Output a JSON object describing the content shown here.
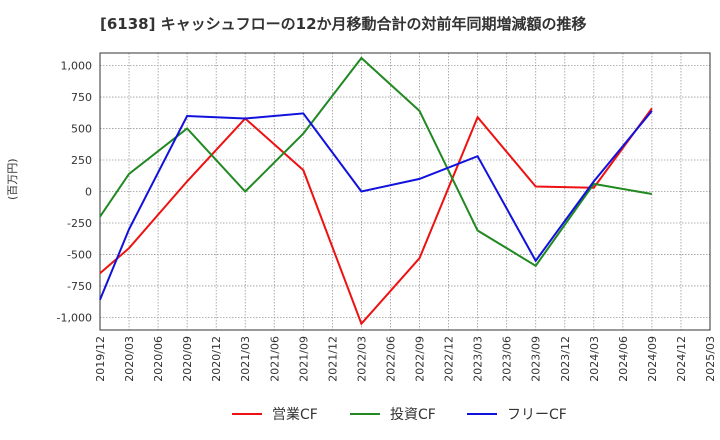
{
  "chart_data": {
    "type": "line",
    "title": "[6138]  キャッシュフローの12か月移動合計の対前年同期増減額の推移",
    "ylabel": "(百万円)",
    "xlabel": "",
    "ylim": [
      -1100,
      1100
    ],
    "yticks": [
      1000,
      750,
      500,
      250,
      0,
      -250,
      -500,
      -750,
      -1000
    ],
    "ytick_labels": [
      "1,000",
      "750",
      "500",
      "250",
      "0",
      "-250",
      "-500",
      "-750",
      "-1,000"
    ],
    "categories": [
      "2019/12",
      "2020/03",
      "2020/06",
      "2020/09",
      "2020/12",
      "2021/03",
      "2021/06",
      "2021/09",
      "2021/12",
      "2022/03",
      "2022/06",
      "2022/09",
      "2022/12",
      "2023/03",
      "2023/06",
      "2023/09",
      "2023/12",
      "2024/03",
      "2024/06",
      "2024/09",
      "2024/12",
      "2025/03"
    ],
    "grid": true,
    "legend_position": "bottom",
    "series": [
      {
        "name": "営業CF",
        "color": "#ee1111",
        "values": [
          -650,
          -450,
          null,
          80,
          null,
          580,
          null,
          170,
          null,
          -1050,
          null,
          -530,
          null,
          590,
          null,
          40,
          null,
          30,
          null,
          660,
          null,
          null
        ]
      },
      {
        "name": "投資CF",
        "color": "#228822",
        "values": [
          -200,
          140,
          null,
          500,
          null,
          0,
          null,
          460,
          null,
          1060,
          null,
          640,
          null,
          -310,
          null,
          -590,
          null,
          60,
          null,
          -20,
          null,
          null
        ]
      },
      {
        "name": "フリーCF",
        "color": "#1111dd",
        "values": [
          -860,
          -300,
          null,
          600,
          null,
          580,
          null,
          620,
          null,
          0,
          null,
          100,
          null,
          280,
          null,
          -550,
          null,
          80,
          null,
          640,
          null,
          null
        ]
      }
    ]
  }
}
